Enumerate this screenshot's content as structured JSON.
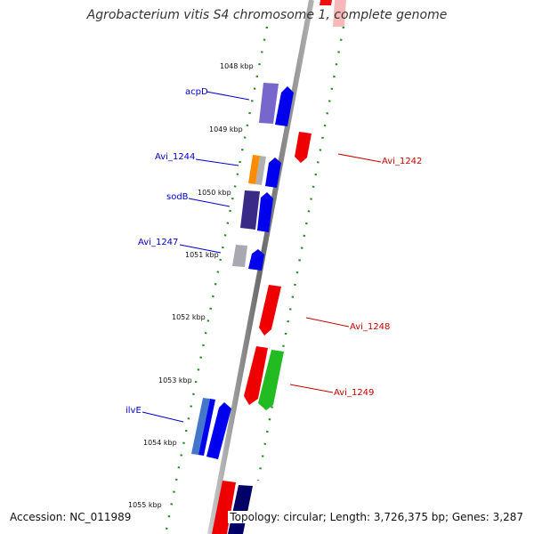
{
  "title": "Agrobacterium vitis S4 chromosome 1, complete genome",
  "footer": {
    "accession": "Accession: NC_011989",
    "topology": "Topology: circular; Length: 3,726,375 bp; Genes: 3,287"
  },
  "colors": {
    "backbone": "#8a8a8a",
    "tick": "#2a8a2a",
    "forward_gene": "#0000ee",
    "reverse_gene": "#ee0000",
    "forward_label": "#0000cc",
    "reverse_label": "#cc0000"
  },
  "kbp_labels": [
    "1048 kbp",
    "1049 kbp",
    "1050 kbp",
    "1051 kbp",
    "1052 kbp",
    "1053 kbp",
    "1054 kbp",
    "1055 kbp"
  ],
  "gene_labels": {
    "forward": [
      "acpD",
      "Avi_1244",
      "sodB",
      "Avi_1247",
      "ilvE"
    ],
    "reverse": [
      "Avi_1242",
      "Avi_1248",
      "Avi_1249"
    ]
  }
}
